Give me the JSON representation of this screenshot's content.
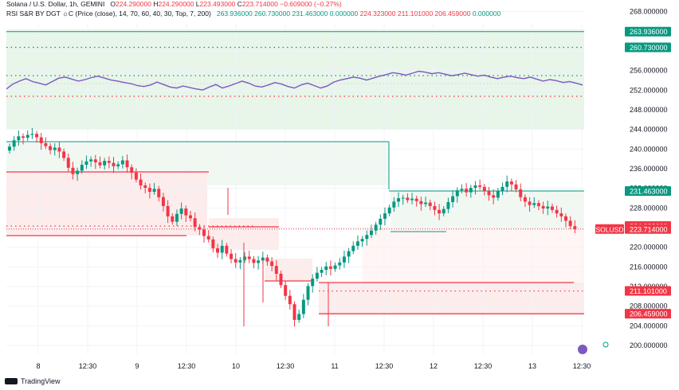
{
  "header": {
    "symbol": "Solana / U.S. Dollar, 1h, GEMINI",
    "o_label": "O",
    "o_value": "224.290000",
    "h_label": "H",
    "h_value": "224.290000",
    "l_label": "L",
    "l_value": "223.493000",
    "c_label": "C",
    "c_value": "223.714000",
    "change": "−0.609000 (−0.27%)",
    "rsi_label": "RSI S&R BY DGT ☼C (Price (close), 14, 70, 60, 40, 30, Top, 7, 200)",
    "rsi_values": [
      "263.936000",
      "260.730000",
      "231.463000",
      "0.000000",
      "224.323000",
      "211.101000",
      "206.459000",
      "0.000000"
    ]
  },
  "footer": {
    "brand": "TradingView"
  },
  "colors": {
    "up": "#089981",
    "down": "#f23645",
    "green_band": "#e8f5e9",
    "red_band": "#fdecec",
    "rsi_line": "#7e57c2"
  },
  "chart_data": {
    "type": "candlestick",
    "title": "Solana / U.S. Dollar, 1h, GEMINI",
    "ylim": [
      198,
      270
    ],
    "y_ticks": [
      "268.000000",
      "256.000000",
      "252.000000",
      "248.000000",
      "244.000000",
      "240.000000",
      "236.000000",
      "232.000000",
      "228.000000",
      "224.000000",
      "220.000000",
      "216.000000",
      "212.000000",
      "208.000000",
      "204.000000",
      "200.000000"
    ],
    "x_ticks": [
      "8",
      "12:30",
      "9",
      "12:30",
      "10",
      "12:30",
      "11",
      "12:30",
      "12",
      "12:30",
      "13",
      "12:30"
    ],
    "closes": [
      240.5,
      241.8,
      242.6,
      242.3,
      242.9,
      243.1,
      242.4,
      241.2,
      240.6,
      239.8,
      240.3,
      239.5,
      238.2,
      236.2,
      234.9,
      235.6,
      236.8,
      237.5,
      237.9,
      237.3,
      236.7,
      237.6,
      237.2,
      236.5,
      236.9,
      237.7,
      236.3,
      235.2,
      233.8,
      232.6,
      232.1,
      231.3,
      231.9,
      230.2,
      228.4,
      226.3,
      225.2,
      226.8,
      227.9,
      226.5,
      225.9,
      224.1,
      223.6,
      222.3,
      221.6,
      219.8,
      218.9,
      220.3,
      218.7,
      217.6,
      216.9,
      217.4,
      218.1,
      217.6,
      216.8,
      217.3,
      217.9,
      217.1,
      216.2,
      214.6,
      212.3,
      210.1,
      208.4,
      205.2,
      206.4,
      209.3,
      212.1,
      213.6,
      214.8,
      215.4,
      216.1,
      215.6,
      216.3,
      216.9,
      218.1,
      219.2,
      220.3,
      221.2,
      221.7,
      222.5,
      223.4,
      224.6,
      225.8,
      226.9,
      228.1,
      229.3,
      230.0,
      230.1,
      229.6,
      229.9,
      229.4,
      228.8,
      229.1,
      228.4,
      227.6,
      226.9,
      227.8,
      229.2,
      230.4,
      231.6,
      231.9,
      231.2,
      232.1,
      232.6,
      232.3,
      231.4,
      230.6,
      230.1,
      231.5,
      232.3,
      233.4,
      232.8,
      231.8,
      230.2,
      229.3,
      228.6,
      229.0,
      228.4,
      227.9,
      228.3,
      227.6,
      226.9,
      226.3,
      225.4,
      224.3,
      223.714
    ],
    "series": [
      {
        "name": "RSI",
        "values": [
          51,
          52,
          52.6,
          53.1,
          52.5,
          52.2,
          51.8,
          52.5,
          53.2,
          53.4,
          53.0,
          52.6,
          52.9,
          53.3,
          53.6,
          53.2,
          52.8,
          52.6,
          52.3,
          52.1,
          51.7,
          51.5,
          51.8,
          52.4,
          51.9,
          51.4,
          51.2,
          51.6,
          51.3,
          51.0,
          50.8,
          51.4,
          51.9,
          51.2,
          51.6,
          52.1,
          52.6,
          52.2,
          51.6,
          51.4,
          51.8,
          52.3,
          52.0,
          51.5,
          51.2,
          51.8,
          52.2,
          51.7,
          51.2,
          51.6,
          52.4,
          52.8,
          53.1,
          53.4,
          53.2,
          52.8,
          53.2,
          53.6,
          53.9,
          54.3,
          54.1,
          53.8,
          54.2,
          54.6,
          54.4,
          54.1,
          54.3,
          54.0,
          53.7,
          53.9,
          54.2,
          53.9,
          53.6,
          53.8,
          53.4,
          53.1,
          53.4,
          53.6,
          53.3,
          53.1,
          53.4,
          53.0,
          52.6,
          52.9,
          52.7,
          52.3,
          52.5,
          52.2,
          51.8
        ]
      },
      {
        "name": "SOLUSD",
        "values": [
          223.714
        ]
      }
    ],
    "levels": [
      {
        "label": "263.936000",
        "value": 263.936,
        "color": "#089981"
      },
      {
        "label": "260.730000",
        "value": 260.73,
        "color": "#089981"
      },
      {
        "label": "231.463000",
        "value": 231.463,
        "color": "#089981"
      },
      {
        "label": "224.323000",
        "value": 224.323,
        "color": "#f23645"
      },
      {
        "label": "SOLUSD",
        "value": 223.714,
        "color": "#f23645"
      },
      {
        "label": "211.101000",
        "value": 211.101,
        "color": "#f23645"
      },
      {
        "label": "206.459000",
        "value": 206.459,
        "color": "#f23645"
      }
    ]
  }
}
